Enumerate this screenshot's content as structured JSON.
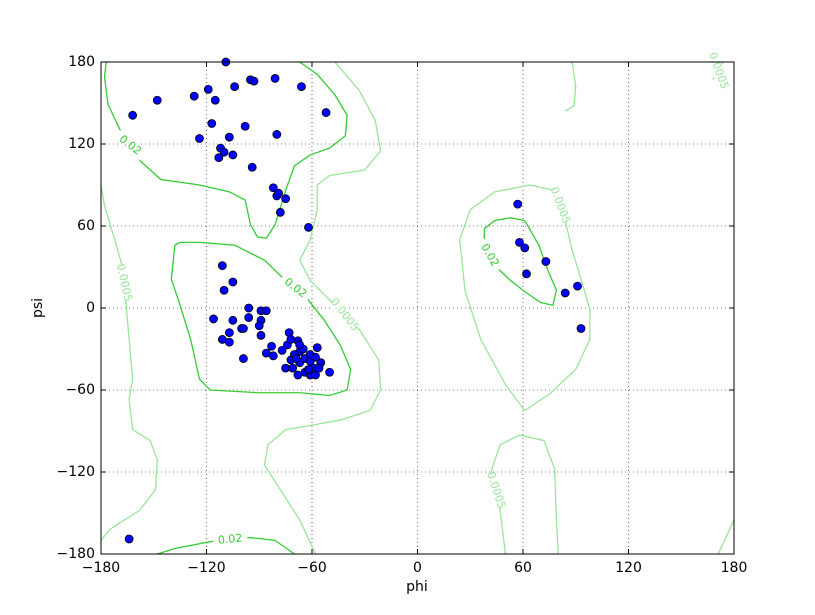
{
  "chart_data": {
    "type": "scatter",
    "x_label": "phi",
    "y_label": "psi",
    "xlim": [
      -180,
      180
    ],
    "ylim": [
      -180,
      180
    ],
    "xticks": [
      {
        "value": -180,
        "label": "−180"
      },
      {
        "value": -120,
        "label": "−120"
      },
      {
        "value": -60,
        "label": "−60"
      },
      0,
      60,
      120,
      180
    ],
    "yticks": [
      {
        "value": -180,
        "label": "−180"
      },
      {
        "value": -120,
        "label": "−120"
      },
      {
        "value": -60,
        "label": "−60"
      },
      0,
      60,
      120,
      180
    ],
    "grid": true,
    "series": [
      {
        "color": "#0000ff",
        "x": [
          -109,
          -162,
          -148,
          -127,
          -119,
          -115,
          -104,
          -95,
          -93,
          -81,
          -66,
          -52,
          -117,
          -124,
          -107,
          -98,
          -80,
          -112,
          -110,
          -105,
          -113,
          -94,
          -82,
          -80,
          -79,
          -75,
          -78,
          -62,
          -111,
          -105,
          -110,
          -116,
          -96,
          -89,
          -86,
          -96,
          -89,
          -90,
          -105,
          -107,
          -100,
          -99,
          -111,
          -107,
          -89,
          -83,
          -86,
          -82,
          -99,
          -74,
          -77,
          -73,
          -72,
          -68,
          -67,
          -70,
          -75,
          -71,
          -67,
          -64,
          -57,
          -61,
          -61,
          -68,
          -64,
          -61,
          -58,
          -55,
          -50,
          -59,
          -58,
          -65,
          -62,
          -56,
          -72,
          -67,
          -69,
          57,
          58,
          61,
          62,
          73,
          84,
          91,
          93,
          -164
        ],
        "y": [
          180,
          141,
          152,
          155,
          160,
          152,
          162,
          167,
          166,
          168,
          162,
          143,
          135,
          124,
          125,
          133,
          127,
          117,
          114,
          112,
          110,
          103,
          88,
          82,
          84,
          80,
          70,
          59,
          31,
          19,
          13,
          -8,
          0,
          -2,
          -2,
          -7,
          -9,
          -13,
          -9,
          -18,
          -15,
          -15,
          -23,
          -25,
          -20,
          -28,
          -33,
          -35,
          -37,
          -27,
          -31,
          -18,
          -23,
          -24,
          -32,
          -34,
          -44,
          -44,
          -40,
          -37,
          -29,
          -34,
          -39,
          -49,
          -47,
          -49,
          -49,
          -40,
          -47,
          -44,
          -36,
          -30,
          -45,
          -44,
          -38,
          -27,
          -37,
          76,
          48,
          44,
          25,
          34,
          11,
          16,
          -15,
          -169
        ]
      }
    ],
    "contours": [
      {
        "level": 0.02,
        "color": "#33cc33",
        "x": [
          -177,
          -178,
          -176,
          -169,
          -158,
          -146,
          -124,
          -107,
          -98,
          -95,
          -91,
          -86,
          -81,
          -75,
          -70,
          -61,
          -50,
          -41,
          -40,
          -47,
          -57,
          -67
        ],
        "y": [
          180,
          169,
          149,
          130,
          108,
          94,
          90,
          85,
          79,
          61,
          52,
          51,
          61,
          86,
          104,
          112,
          117,
          126,
          141,
          156,
          171,
          180
        ]
      },
      {
        "level": 0.02,
        "color": "#33cc33",
        "x": [
          -138,
          -140,
          -136,
          -129,
          -124,
          -118,
          -90,
          -67,
          -50,
          -40,
          -38,
          -44,
          -53,
          -64,
          -75,
          -87,
          -104,
          -124,
          -135,
          -138
        ],
        "y": [
          46,
          21,
          6,
          -23,
          -52,
          -60,
          -62,
          -62,
          -64,
          -60,
          -45,
          -27,
          -9,
          9,
          20,
          35,
          46,
          48,
          48,
          46
        ]
      },
      {
        "level": 0.02,
        "color": "#33cc33",
        "x": [
          53,
          44,
          38,
          38,
          44,
          53,
          61,
          69,
          74,
          79,
          77,
          70,
          61,
          53
        ],
        "y": [
          20,
          31,
          46,
          58,
          64,
          66,
          64,
          46,
          28,
          13,
          2,
          4,
          12,
          20
        ]
      },
      {
        "level": 0.02,
        "color": "#33cc33",
        "x": [
          -148,
          -138,
          -118,
          -95,
          -81,
          -70
        ],
        "y": [
          -180,
          -176,
          -171,
          -168,
          -170,
          -180
        ]
      },
      {
        "level": 0.0005,
        "color": "#99e699",
        "x": [
          -180,
          -178,
          -172,
          -168,
          -166,
          -164,
          -162,
          -164,
          -162,
          -152,
          -148,
          -149,
          -158,
          -175,
          -180
        ],
        "y": [
          90,
          75,
          49,
          31,
          6,
          -23,
          -52,
          -67,
          -89,
          -97,
          -111,
          -133,
          -148,
          -162,
          -170
        ]
      },
      {
        "level": 0.0005,
        "color": "#99e699",
        "x": [
          -47,
          -33,
          -24,
          -21,
          -30,
          -50,
          -57,
          -57,
          -61,
          -67,
          -61,
          -50,
          -33,
          -22,
          -21,
          -27,
          -44,
          -61,
          -75,
          -85,
          -87,
          -78,
          -67,
          -58
        ],
        "y": [
          180,
          159,
          137,
          115,
          101,
          97,
          90,
          72,
          50,
          35,
          20,
          6,
          -16,
          -38,
          -60,
          -75,
          -82,
          -86,
          -89,
          -100,
          -115,
          -133,
          -155,
          -180
        ]
      },
      {
        "level": 0.0005,
        "color": "#99e699",
        "x": [
          61,
          50,
          36,
          27,
          24,
          30,
          44,
          64,
          78,
          84,
          88,
          94,
          98,
          98,
          90,
          75,
          61
        ],
        "y": [
          -75,
          -56,
          -23,
          13,
          50,
          72,
          85,
          90,
          86,
          64,
          42,
          17,
          -1,
          -23,
          -45,
          -63,
          -75
        ]
      },
      {
        "level": 0.0005,
        "color": "#99e699",
        "x": [
          50,
          47,
          42,
          47,
          58,
          72,
          78,
          79,
          80
        ],
        "y": [
          -180,
          -148,
          -119,
          -100,
          -93,
          -97,
          -118,
          -155,
          -180
        ]
      },
      {
        "level": 0.0005,
        "color": "#99e699",
        "x": [
          88,
          90,
          89,
          84
        ],
        "y": [
          180,
          162,
          148,
          144
        ]
      },
      {
        "level": 0.0005,
        "color": "#99e699",
        "x": [
          168,
          174
        ],
        "y": [
          167,
          180
        ]
      },
      {
        "level": 0.0005,
        "color": "#99e699",
        "x": [
          171,
          180
        ],
        "y": [
          -180,
          -155
        ]
      }
    ]
  }
}
